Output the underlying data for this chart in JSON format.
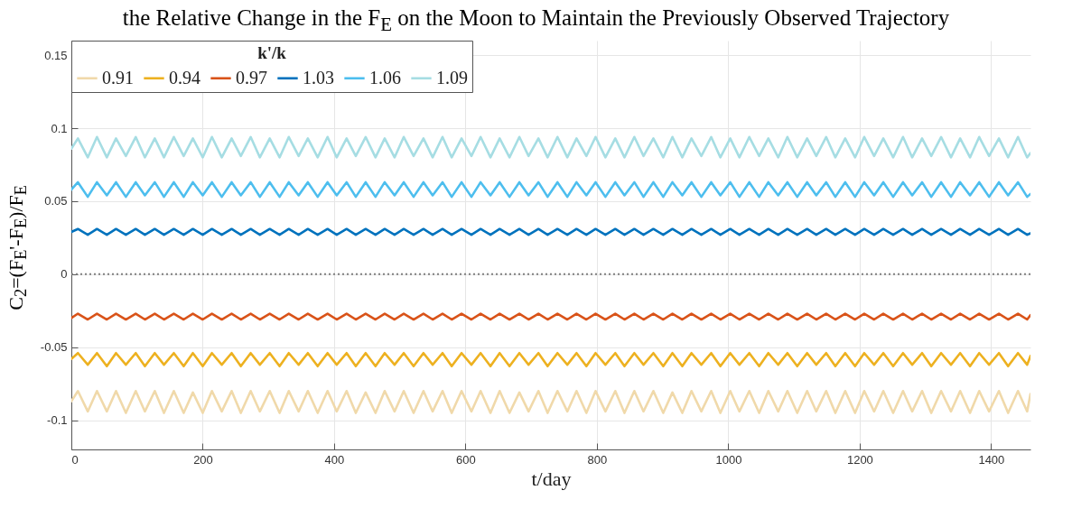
{
  "chart_data": {
    "type": "line",
    "title": "the Relative Change in the F$_{E}$ on the Moon to Maintain the Previously Observed Trajectory",
    "xlabel": "t/day",
    "ylabel": "C$_{2}$=(F$_{E}$'-F$_{E}$)/F$_{E}$",
    "legend_title": "k'/k",
    "legend": "top left",
    "grid": true,
    "line_style": "solid",
    "marker": "none",
    "xlim": [
      0,
      1460
    ],
    "xticks": [
      0,
      200,
      400,
      600,
      800,
      1000,
      1200,
      1400
    ],
    "ylim": [
      -0.12,
      0.16
    ],
    "yticks": [
      -0.1,
      -0.05,
      0,
      0.05,
      0.1,
      0.15
    ],
    "ref_lines": [
      {
        "axis": "y",
        "value": 0,
        "color": "#808080",
        "line_style": "dotted"
      }
    ],
    "x": [
      0,
      10,
      25,
      39,
      54,
      68,
      83,
      98,
      112,
      127,
      141,
      156,
      171,
      185,
      200,
      214,
      229,
      244,
      258,
      273,
      287,
      302,
      317,
      331,
      346,
      360,
      375,
      390,
      404,
      419,
      433,
      448,
      463,
      477,
      492,
      506,
      521,
      536,
      550,
      565,
      579,
      594,
      609,
      623,
      638,
      652,
      667,
      682,
      696,
      711,
      725,
      740,
      755,
      769,
      784,
      798,
      813,
      828,
      842,
      857,
      871,
      886,
      901,
      915,
      930,
      944,
      959,
      974,
      988,
      1003,
      1017,
      1032,
      1047,
      1061,
      1076,
      1090,
      1105,
      1120,
      1134,
      1149,
      1163,
      1178,
      1193,
      1207,
      1222,
      1236,
      1251,
      1266,
      1280,
      1295,
      1309,
      1324,
      1339,
      1353,
      1368,
      1382,
      1397,
      1412,
      1426,
      1441,
      1455,
      1460
    ],
    "series": [
      {
        "name": "0.91",
        "color": "#f0d9aa",
        "values": [
          -0.087,
          -0.08,
          -0.094,
          -0.08,
          -0.094,
          -0.08,
          -0.095,
          -0.08,
          -0.094,
          -0.08,
          -0.095,
          -0.08,
          -0.095,
          -0.081,
          -0.095,
          -0.08,
          -0.094,
          -0.08,
          -0.095,
          -0.08,
          -0.094,
          -0.08,
          -0.095,
          -0.08,
          -0.094,
          -0.08,
          -0.095,
          -0.08,
          -0.094,
          -0.08,
          -0.095,
          -0.081,
          -0.095,
          -0.08,
          -0.094,
          -0.08,
          -0.095,
          -0.08,
          -0.094,
          -0.08,
          -0.095,
          -0.08,
          -0.094,
          -0.08,
          -0.095,
          -0.08,
          -0.095,
          -0.081,
          -0.094,
          -0.08,
          -0.095,
          -0.08,
          -0.094,
          -0.08,
          -0.095,
          -0.08,
          -0.094,
          -0.08,
          -0.095,
          -0.08,
          -0.094,
          -0.08,
          -0.095,
          -0.081,
          -0.095,
          -0.08,
          -0.094,
          -0.08,
          -0.095,
          -0.08,
          -0.094,
          -0.08,
          -0.095,
          -0.08,
          -0.094,
          -0.08,
          -0.095,
          -0.08,
          -0.094,
          -0.08,
          -0.095,
          -0.08,
          -0.095,
          -0.08,
          -0.094,
          -0.08,
          -0.095,
          -0.08,
          -0.094,
          -0.08,
          -0.095,
          -0.08,
          -0.094,
          -0.08,
          -0.095,
          -0.08,
          -0.094,
          -0.08,
          -0.095,
          -0.08,
          -0.094,
          -0.082
        ]
      },
      {
        "name": "0.94",
        "color": "#edb120",
        "values": [
          -0.058,
          -0.054,
          -0.062,
          -0.054,
          -0.063,
          -0.054,
          -0.062,
          -0.054,
          -0.063,
          -0.054,
          -0.062,
          -0.054,
          -0.063,
          -0.054,
          -0.063,
          -0.054,
          -0.062,
          -0.054,
          -0.063,
          -0.054,
          -0.062,
          -0.054,
          -0.063,
          -0.054,
          -0.062,
          -0.054,
          -0.063,
          -0.054,
          -0.062,
          -0.054,
          -0.063,
          -0.054,
          -0.063,
          -0.054,
          -0.062,
          -0.054,
          -0.063,
          -0.054,
          -0.062,
          -0.054,
          -0.063,
          -0.054,
          -0.062,
          -0.054,
          -0.063,
          -0.054,
          -0.063,
          -0.054,
          -0.062,
          -0.054,
          -0.063,
          -0.054,
          -0.062,
          -0.054,
          -0.063,
          -0.054,
          -0.062,
          -0.054,
          -0.063,
          -0.054,
          -0.062,
          -0.054,
          -0.063,
          -0.054,
          -0.063,
          -0.054,
          -0.062,
          -0.054,
          -0.063,
          -0.054,
          -0.062,
          -0.054,
          -0.063,
          -0.054,
          -0.062,
          -0.054,
          -0.063,
          -0.054,
          -0.062,
          -0.054,
          -0.063,
          -0.054,
          -0.063,
          -0.054,
          -0.062,
          -0.054,
          -0.063,
          -0.054,
          -0.062,
          -0.054,
          -0.063,
          -0.054,
          -0.062,
          -0.054,
          -0.063,
          -0.054,
          -0.062,
          -0.054,
          -0.063,
          -0.054,
          -0.062,
          -0.056
        ]
      },
      {
        "name": "0.97",
        "color": "#d95319",
        "values": [
          -0.03,
          -0.027,
          -0.031,
          -0.027,
          -0.031,
          -0.027,
          -0.031,
          -0.027,
          -0.031,
          -0.027,
          -0.031,
          -0.027,
          -0.031,
          -0.027,
          -0.031,
          -0.027,
          -0.031,
          -0.027,
          -0.031,
          -0.027,
          -0.031,
          -0.027,
          -0.031,
          -0.027,
          -0.031,
          -0.027,
          -0.031,
          -0.027,
          -0.031,
          -0.027,
          -0.031,
          -0.027,
          -0.031,
          -0.027,
          -0.031,
          -0.027,
          -0.031,
          -0.027,
          -0.031,
          -0.027,
          -0.031,
          -0.027,
          -0.031,
          -0.027,
          -0.031,
          -0.027,
          -0.031,
          -0.027,
          -0.031,
          -0.027,
          -0.031,
          -0.027,
          -0.031,
          -0.027,
          -0.031,
          -0.027,
          -0.031,
          -0.027,
          -0.031,
          -0.027,
          -0.031,
          -0.027,
          -0.031,
          -0.027,
          -0.031,
          -0.027,
          -0.031,
          -0.027,
          -0.031,
          -0.027,
          -0.031,
          -0.027,
          -0.031,
          -0.027,
          -0.031,
          -0.027,
          -0.031,
          -0.027,
          -0.031,
          -0.027,
          -0.031,
          -0.027,
          -0.031,
          -0.027,
          -0.031,
          -0.027,
          -0.031,
          -0.027,
          -0.031,
          -0.027,
          -0.031,
          -0.027,
          -0.031,
          -0.027,
          -0.031,
          -0.027,
          -0.031,
          -0.027,
          -0.031,
          -0.027,
          -0.031,
          -0.028
        ]
      },
      {
        "name": "1.03",
        "color": "#0072bd",
        "values": [
          0.029,
          0.031,
          0.027,
          0.031,
          0.027,
          0.031,
          0.027,
          0.031,
          0.027,
          0.031,
          0.027,
          0.031,
          0.027,
          0.031,
          0.027,
          0.031,
          0.027,
          0.031,
          0.027,
          0.031,
          0.027,
          0.031,
          0.027,
          0.031,
          0.027,
          0.031,
          0.027,
          0.031,
          0.027,
          0.031,
          0.027,
          0.031,
          0.027,
          0.031,
          0.027,
          0.031,
          0.027,
          0.031,
          0.027,
          0.031,
          0.027,
          0.031,
          0.027,
          0.031,
          0.027,
          0.031,
          0.027,
          0.031,
          0.027,
          0.031,
          0.027,
          0.031,
          0.027,
          0.031,
          0.027,
          0.031,
          0.027,
          0.031,
          0.027,
          0.031,
          0.027,
          0.031,
          0.027,
          0.031,
          0.027,
          0.031,
          0.027,
          0.031,
          0.027,
          0.031,
          0.027,
          0.031,
          0.027,
          0.031,
          0.027,
          0.031,
          0.027,
          0.031,
          0.027,
          0.031,
          0.027,
          0.031,
          0.027,
          0.031,
          0.027,
          0.031,
          0.027,
          0.031,
          0.027,
          0.031,
          0.027,
          0.031,
          0.027,
          0.031,
          0.027,
          0.031,
          0.027,
          0.031,
          0.027,
          0.031,
          0.027,
          0.028
        ]
      },
      {
        "name": "1.06",
        "color": "#4dbeee",
        "values": [
          0.058,
          0.063,
          0.053,
          0.063,
          0.054,
          0.063,
          0.053,
          0.063,
          0.054,
          0.063,
          0.053,
          0.063,
          0.053,
          0.063,
          0.054,
          0.063,
          0.053,
          0.063,
          0.054,
          0.063,
          0.053,
          0.063,
          0.053,
          0.063,
          0.054,
          0.063,
          0.053,
          0.063,
          0.054,
          0.063,
          0.053,
          0.063,
          0.053,
          0.063,
          0.054,
          0.063,
          0.053,
          0.063,
          0.054,
          0.063,
          0.053,
          0.063,
          0.053,
          0.063,
          0.054,
          0.063,
          0.053,
          0.063,
          0.054,
          0.063,
          0.053,
          0.063,
          0.053,
          0.063,
          0.054,
          0.063,
          0.053,
          0.063,
          0.054,
          0.063,
          0.053,
          0.063,
          0.053,
          0.063,
          0.054,
          0.063,
          0.053,
          0.063,
          0.054,
          0.063,
          0.053,
          0.063,
          0.053,
          0.063,
          0.054,
          0.063,
          0.053,
          0.063,
          0.054,
          0.063,
          0.053,
          0.063,
          0.053,
          0.063,
          0.054,
          0.063,
          0.053,
          0.063,
          0.054,
          0.063,
          0.053,
          0.063,
          0.053,
          0.063,
          0.054,
          0.063,
          0.053,
          0.063,
          0.054,
          0.063,
          0.053,
          0.055
        ]
      },
      {
        "name": "1.09",
        "color": "#a6dde3",
        "values": [
          0.086,
          0.093,
          0.08,
          0.094,
          0.08,
          0.093,
          0.081,
          0.094,
          0.08,
          0.093,
          0.08,
          0.094,
          0.081,
          0.093,
          0.08,
          0.094,
          0.08,
          0.093,
          0.081,
          0.094,
          0.08,
          0.093,
          0.08,
          0.094,
          0.081,
          0.093,
          0.08,
          0.094,
          0.08,
          0.093,
          0.081,
          0.094,
          0.08,
          0.093,
          0.08,
          0.094,
          0.081,
          0.093,
          0.08,
          0.094,
          0.08,
          0.093,
          0.081,
          0.094,
          0.08,
          0.093,
          0.08,
          0.094,
          0.081,
          0.093,
          0.08,
          0.094,
          0.08,
          0.093,
          0.081,
          0.094,
          0.08,
          0.093,
          0.08,
          0.094,
          0.081,
          0.093,
          0.08,
          0.094,
          0.08,
          0.093,
          0.081,
          0.094,
          0.08,
          0.093,
          0.08,
          0.094,
          0.081,
          0.093,
          0.08,
          0.094,
          0.08,
          0.093,
          0.081,
          0.094,
          0.08,
          0.093,
          0.08,
          0.094,
          0.081,
          0.093,
          0.08,
          0.094,
          0.08,
          0.093,
          0.081,
          0.094,
          0.08,
          0.093,
          0.08,
          0.094,
          0.081,
          0.093,
          0.08,
          0.094,
          0.08,
          0.083
        ]
      }
    ]
  }
}
